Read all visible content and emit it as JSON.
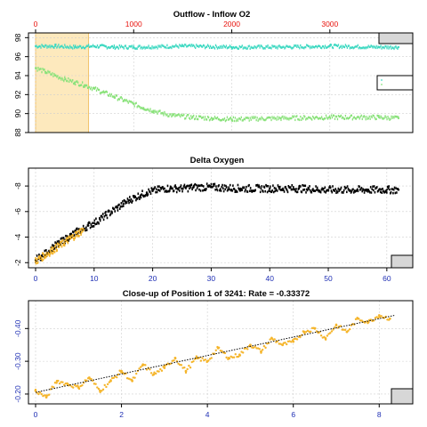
{
  "chart_data": [
    {
      "type": "scatter",
      "title": "Outflow - Inflow O2",
      "xlim": [
        0,
        3700
      ],
      "ylim": [
        88,
        98.5
      ],
      "top_ticks": [
        0,
        1000,
        2000,
        3000
      ],
      "y_ticks": [
        88,
        90,
        92,
        94,
        96,
        98
      ],
      "highlight_x": [
        0,
        540
      ],
      "highlight_color": "#fde9bd",
      "grid": true,
      "series": [
        {
          "color": "#3fd9c2",
          "x": [
            0,
            200,
            400,
            600,
            800,
            1000,
            1500,
            2000,
            2500,
            3000,
            3500,
            3700
          ],
          "y": [
            97.1,
            97.1,
            97.0,
            97.1,
            97.0,
            97.0,
            97.1,
            97.0,
            97.0,
            97.1,
            97.0,
            97.0
          ]
        },
        {
          "color": "#8ae27b",
          "x": [
            0,
            100,
            200,
            300,
            400,
            500,
            600,
            700,
            800,
            900,
            1000,
            1100,
            1200,
            1300,
            1400,
            1600,
            1800,
            2000,
            2500,
            3000,
            3500,
            3700
          ],
          "y": [
            94.8,
            94.4,
            94.0,
            93.6,
            93.3,
            93.0,
            92.6,
            92.2,
            91.8,
            91.4,
            91.0,
            90.6,
            90.3,
            90.0,
            89.8,
            89.6,
            89.5,
            89.4,
            89.5,
            89.6,
            89.6,
            89.5
          ]
        }
      ]
    },
    {
      "type": "scatter",
      "title": "Delta Oxygen",
      "xlim": [
        0,
        62
      ],
      "ylim": [
        1.6,
        9.4
      ],
      "x_ticks": [
        0,
        10,
        20,
        30,
        40,
        50,
        60
      ],
      "y_ticks": [
        2,
        4,
        6,
        8
      ],
      "grid": true,
      "series": [
        {
          "color": "#000000",
          "x": [
            0,
            1,
            2,
            3,
            4,
            5,
            6,
            7,
            8,
            9,
            10,
            11,
            12,
            13,
            14,
            15,
            16,
            17,
            18,
            19,
            20,
            21,
            22,
            23,
            24,
            25,
            27,
            30,
            35,
            40,
            45,
            50,
            55,
            60,
            62
          ],
          "y": [
            2.2,
            2.5,
            2.8,
            3.2,
            3.5,
            3.8,
            4.1,
            4.4,
            4.6,
            4.9,
            5.1,
            5.4,
            5.7,
            6.0,
            6.3,
            6.6,
            6.9,
            7.1,
            7.3,
            7.5,
            7.6,
            7.7,
            7.8,
            7.8,
            7.8,
            7.8,
            7.9,
            7.9,
            7.8,
            7.8,
            7.8,
            7.7,
            7.7,
            7.7,
            7.7
          ]
        },
        {
          "color": "#f5b52b",
          "x": [
            0,
            1,
            2,
            3,
            4,
            5,
            6,
            7,
            8.2
          ],
          "y": [
            2.1,
            2.4,
            2.7,
            3.0,
            3.3,
            3.6,
            3.9,
            4.2,
            4.6
          ]
        }
      ],
      "trend_line": {
        "x": [
          0,
          8.2
        ],
        "y": [
          2.1,
          4.6
        ]
      }
    },
    {
      "type": "scatter",
      "title": "Close-up of Position 1 of 3241: Rate =  -0.33372",
      "xlim": [
        0,
        8.45
      ],
      "ylim": [
        0.17,
        0.485
      ],
      "x_ticks": [
        0,
        2,
        4,
        6,
        8
      ],
      "y_ticks": [
        0.2,
        0.3,
        0.4
      ],
      "y_tick_labels": [
        "-0.20",
        "-0.30",
        "-0.40"
      ],
      "grid": true,
      "series": [
        {
          "color": "#f5b52b",
          "x": [
            0,
            0.25,
            0.5,
            0.75,
            1.0,
            1.25,
            1.5,
            1.75,
            2.0,
            2.25,
            2.5,
            2.75,
            3.0,
            3.25,
            3.5,
            3.75,
            4.0,
            4.25,
            4.5,
            4.75,
            5.0,
            5.25,
            5.5,
            5.75,
            6.0,
            6.25,
            6.5,
            6.75,
            7.0,
            7.25,
            7.5,
            7.75,
            8.0,
            8.25
          ],
          "y": [
            0.21,
            0.19,
            0.24,
            0.23,
            0.22,
            0.25,
            0.21,
            0.24,
            0.27,
            0.24,
            0.29,
            0.26,
            0.28,
            0.31,
            0.27,
            0.31,
            0.3,
            0.34,
            0.31,
            0.32,
            0.35,
            0.33,
            0.37,
            0.35,
            0.36,
            0.39,
            0.4,
            0.37,
            0.41,
            0.39,
            0.43,
            0.42,
            0.44,
            0.43
          ]
        }
      ],
      "trend_line": {
        "x": [
          0,
          8.35
        ],
        "y": [
          0.205,
          0.44
        ]
      }
    }
  ]
}
